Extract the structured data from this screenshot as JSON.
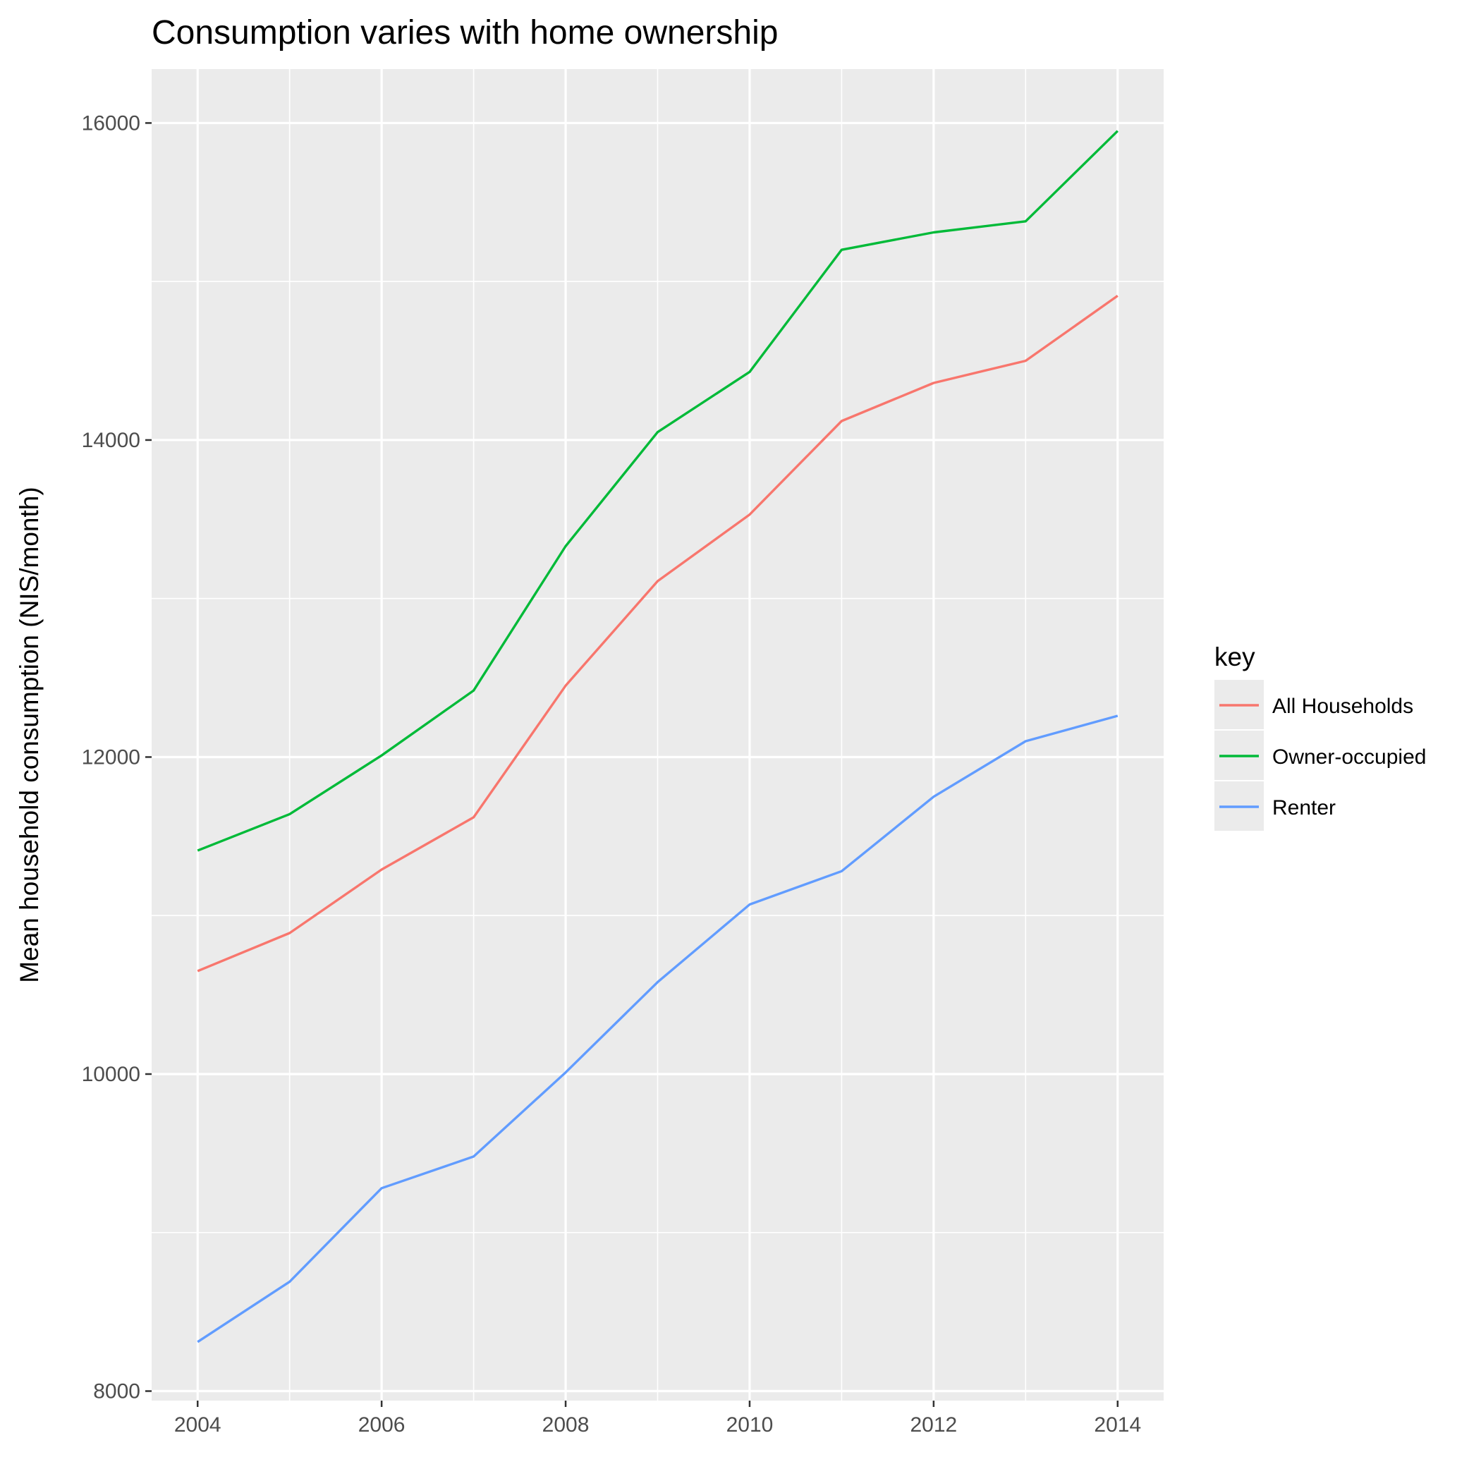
{
  "chart_data": {
    "type": "line",
    "title": "Consumption varies with home ownership",
    "xlabel": "",
    "ylabel": "Mean household consumption (NIS/month)",
    "x": [
      2004,
      2005,
      2006,
      2007,
      2008,
      2009,
      2010,
      2011,
      2012,
      2013,
      2014
    ],
    "x_ticks": [
      2004,
      2006,
      2008,
      2010,
      2012,
      2014
    ],
    "y_ticks": [
      8000,
      10000,
      12000,
      14000,
      16000
    ],
    "xlim": [
      2003.5,
      2014.5
    ],
    "ylim": [
      7940,
      16340
    ],
    "grid": true,
    "legend": {
      "title": "key",
      "position": "right"
    },
    "series": [
      {
        "name": "All Households",
        "color": "#F8766D",
        "values": [
          10650,
          10890,
          11290,
          11620,
          12450,
          13110,
          13530,
          14120,
          14360,
          14500,
          14910
        ]
      },
      {
        "name": "Owner-occupied",
        "color": "#00BA38",
        "values": [
          11410,
          11640,
          12010,
          12420,
          13330,
          14050,
          14430,
          15200,
          15310,
          15380,
          15950
        ]
      },
      {
        "name": "Renter",
        "color": "#619CFF",
        "values": [
          8310,
          8690,
          9280,
          9480,
          10010,
          10580,
          11070,
          11280,
          11750,
          12100,
          12260
        ]
      }
    ]
  }
}
